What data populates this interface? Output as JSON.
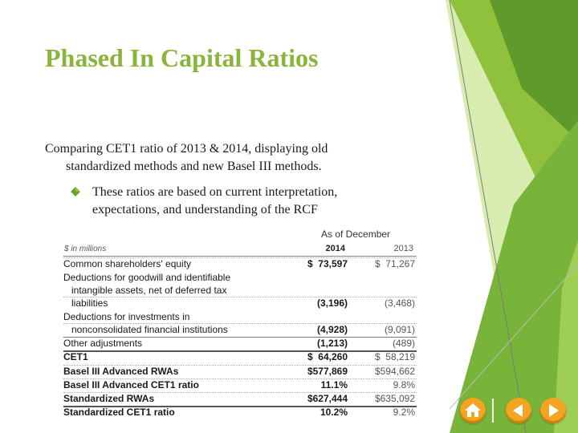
{
  "slide": {
    "title": "Phased In Capital Ratios",
    "body_line1": "Comparing CET1 ratio of 2013 & 2014, displaying old",
    "body_line2": "standardized methods and new Basel III methods.",
    "bullet_line1": "These ratios are based on current interpretation,",
    "bullet_line2": "expectations, and understanding of the RCF"
  },
  "table": {
    "header_group": "As of December",
    "units": "$ in millions",
    "col_2014": "2014",
    "col_2013": "2013",
    "rows": [
      {
        "label": "Common shareholders' equity",
        "v2014": "$  73,597",
        "v2013": "$  71,267"
      },
      {
        "label": "Deductions for goodwill and identifiable",
        "v2014": "",
        "v2013": ""
      },
      {
        "label": "intangible assets, net of deferred tax",
        "v2014": "",
        "v2013": ""
      },
      {
        "label": "liabilities",
        "v2014": "(3,196)",
        "v2013": "(3,468)"
      },
      {
        "label": "Deductions for investments in",
        "v2014": "",
        "v2013": ""
      },
      {
        "label": "nonconsolidated financial institutions",
        "v2014": "(4,928)",
        "v2013": "(9,091)"
      },
      {
        "label": "Other adjustments",
        "v2014": "(1,213)",
        "v2013": "(489)"
      },
      {
        "label": "CET1",
        "v2014": "$  64,260",
        "v2013": "$  58,219"
      },
      {
        "label": "Basel III Advanced RWAs",
        "v2014": "$577,869",
        "v2013": "$594,662"
      },
      {
        "label": "Basel III Advanced CET1 ratio",
        "v2014": "11.1%",
        "v2013": "9.8%"
      },
      {
        "label": "Standardized RWAs",
        "v2014": "$627,444",
        "v2013": "$635,092"
      },
      {
        "label": "Standardized CET1 ratio",
        "v2014": "10.2%",
        "v2013": "9.2%"
      }
    ]
  },
  "nav": {
    "home": "home-icon",
    "prev": "previous-icon",
    "next": "next-icon"
  },
  "colors": {
    "accent": "#8ab43c",
    "nav_button": "#f3a520"
  }
}
